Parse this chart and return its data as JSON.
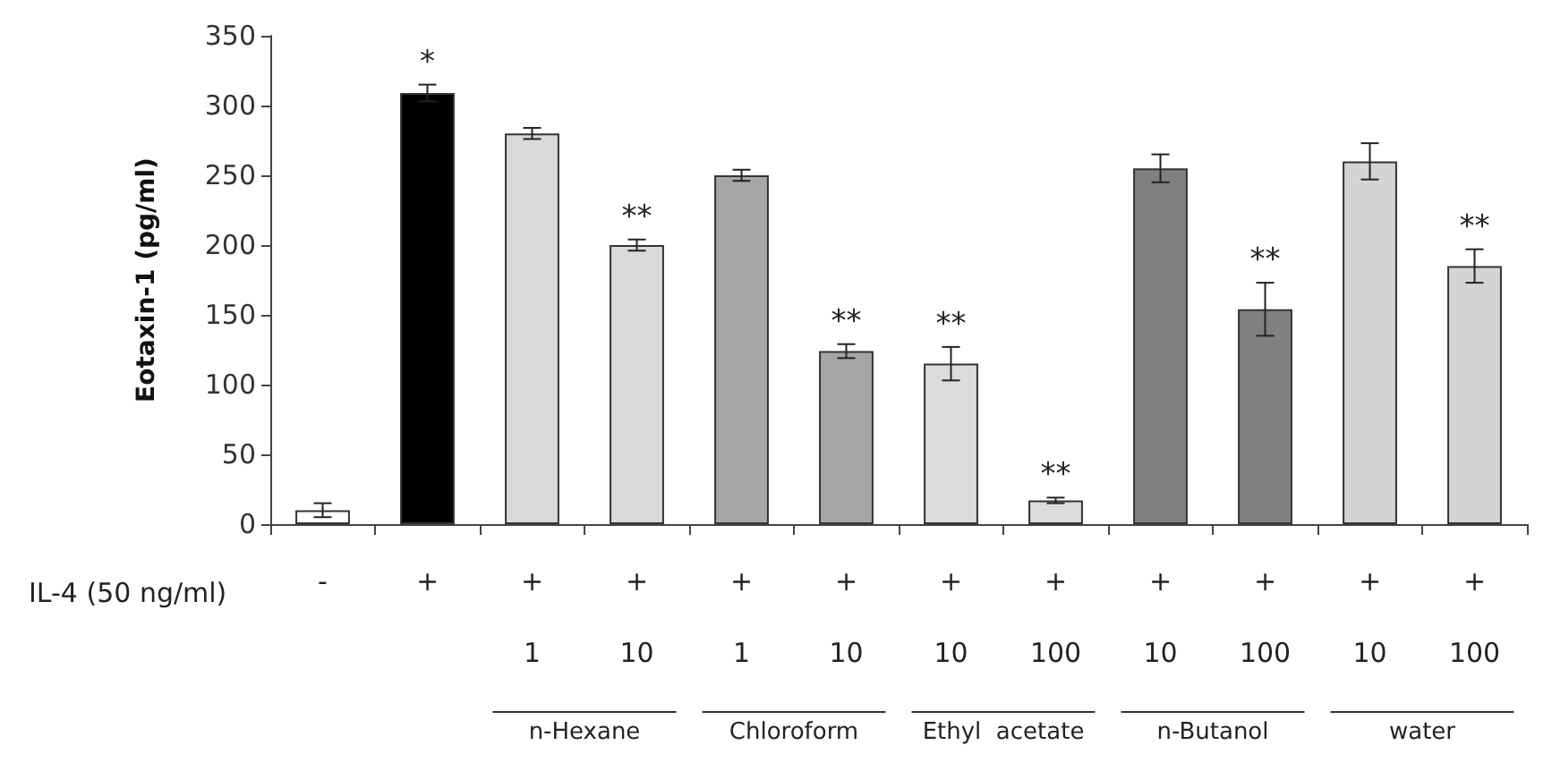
{
  "chart_data": {
    "type": "bar",
    "ylabel": "Eotaxin-1 (pg/ml)",
    "categories": [
      "-",
      "+",
      "+\n1",
      "+\n10",
      "+\n1",
      "+\n10",
      "+\n10",
      "+\n100",
      "+\n10",
      "+\n100",
      "+\n10",
      "+\n100"
    ],
    "values": [
      10,
      309,
      280,
      200,
      250,
      124,
      115,
      17,
      255,
      154,
      260,
      185
    ],
    "errors": [
      5,
      6,
      4,
      4,
      4,
      5,
      12,
      2,
      10,
      19,
      13,
      12
    ],
    "value_labels": [
      null,
      "*",
      null,
      "**",
      null,
      "**",
      "**",
      "**",
      null,
      "**",
      null,
      "**"
    ],
    "colors": [
      "#ffffff",
      "#000000",
      "#d9d9d9",
      "#d9d9d9",
      "#a6a6a6",
      "#a6a6a6",
      "#dcdcdc",
      "#dcdcdc",
      "#808080",
      "#808080",
      "#d4d4d4",
      "#d4d4d4"
    ],
    "annotations": [
      "IL-4 (50 ng/ml)",
      "n-Hexane",
      "Chloroform",
      "Ethyl  acetate",
      "n-Butanol",
      "water"
    ],
    "ylim": [
      0,
      350
    ],
    "yticks": [
      0,
      50,
      100,
      150,
      200,
      250,
      300,
      350
    ],
    "grid": false
  }
}
